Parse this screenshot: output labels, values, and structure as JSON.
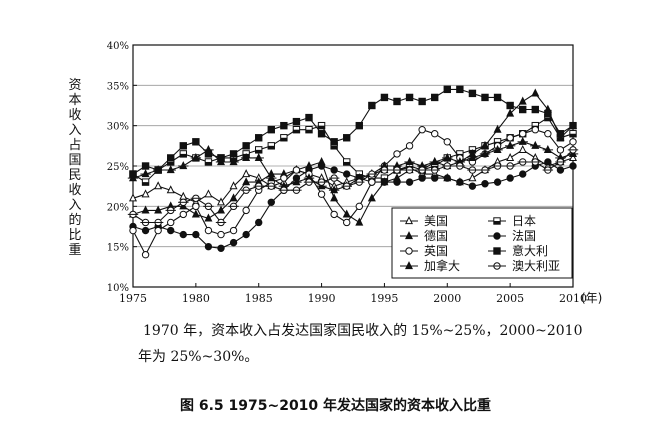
{
  "chart_data": {
    "type": "line",
    "ylabel": "资本收入占国民收入的比重",
    "xlim": [
      1975,
      2010
    ],
    "ylim": [
      10,
      40
    ],
    "x_ticks": [
      "1975",
      "1980",
      "1985",
      "1990",
      "1995",
      "2000",
      "2005",
      "2010"
    ],
    "x_unit": "(年)",
    "y_ticks": [
      "10%",
      "15%",
      "20%",
      "25%",
      "30%",
      "35%",
      "40%"
    ],
    "grid": "horizontal",
    "legend_position": "bottom-right",
    "x": [
      1975,
      1976,
      1977,
      1978,
      1979,
      1980,
      1981,
      1982,
      1983,
      1984,
      1985,
      1986,
      1987,
      1988,
      1989,
      1990,
      1991,
      1992,
      1993,
      1994,
      1995,
      1996,
      1997,
      1998,
      1999,
      2000,
      2001,
      2002,
      2003,
      2004,
      2005,
      2006,
      2007,
      2008,
      2009,
      2010
    ],
    "series": [
      {
        "name": "美国",
        "marker": "triangle-open",
        "color": "#111111",
        "values": [
          21.0,
          21.5,
          22.5,
          22.0,
          21.2,
          20.5,
          21.5,
          20.5,
          22.5,
          24.0,
          23.5,
          22.5,
          23.0,
          24.5,
          24.0,
          23.5,
          22.5,
          23.0,
          23.5,
          24.0,
          24.5,
          24.5,
          24.8,
          24.0,
          24.0,
          23.5,
          23.0,
          23.5,
          24.5,
          25.5,
          26.0,
          27.0,
          26.0,
          25.0,
          25.5,
          26.0
        ]
      },
      {
        "name": "日本",
        "marker": "square-half",
        "color": "#111111",
        "values": [
          24.0,
          23.0,
          24.5,
          25.5,
          26.5,
          26.0,
          25.5,
          26.0,
          26.0,
          26.5,
          27.0,
          27.5,
          28.5,
          29.5,
          29.5,
          30.0,
          27.5,
          25.5,
          24.0,
          23.5,
          23.5,
          24.5,
          25.0,
          24.5,
          25.0,
          26.0,
          26.5,
          27.0,
          27.5,
          28.0,
          28.5,
          29.0,
          30.0,
          31.0,
          28.5,
          29.0
        ]
      },
      {
        "name": "德国",
        "marker": "triangle-filled",
        "color": "#111111",
        "values": [
          19.0,
          19.5,
          19.5,
          20.0,
          20.0,
          19.0,
          18.5,
          19.5,
          21.0,
          23.0,
          23.0,
          24.0,
          24.0,
          24.5,
          25.0,
          25.5,
          21.0,
          19.0,
          18.0,
          21.0,
          23.0,
          23.5,
          24.5,
          24.5,
          25.5,
          25.0,
          25.5,
          26.5,
          27.5,
          29.5,
          31.5,
          33.0,
          34.0,
          32.0,
          28.5,
          30.0
        ]
      },
      {
        "name": "法国",
        "marker": "circle-filled",
        "color": "#111111",
        "values": [
          17.5,
          17.0,
          17.5,
          17.0,
          16.5,
          16.5,
          15.0,
          14.8,
          15.5,
          16.5,
          18.0,
          20.5,
          22.0,
          23.5,
          24.5,
          25.0,
          24.5,
          24.0,
          23.5,
          23.0,
          23.0,
          23.0,
          23.0,
          23.5,
          23.5,
          23.5,
          23.0,
          22.5,
          22.8,
          23.0,
          23.5,
          24.0,
          25.0,
          25.5,
          24.5,
          25.0
        ]
      },
      {
        "name": "英国",
        "marker": "circle-open",
        "color": "#111111",
        "values": [
          17.0,
          14.0,
          17.0,
          18.0,
          19.0,
          20.0,
          17.0,
          16.5,
          17.0,
          19.5,
          22.0,
          23.0,
          23.5,
          24.5,
          24.0,
          21.5,
          19.0,
          18.0,
          20.0,
          23.0,
          25.0,
          26.5,
          27.5,
          29.5,
          29.0,
          28.0,
          26.0,
          25.5,
          26.5,
          27.5,
          28.5,
          29.0,
          29.5,
          29.0,
          27.0,
          28.0
        ]
      },
      {
        "name": "意大利",
        "marker": "square-filled",
        "color": "#111111",
        "values": [
          24.0,
          25.0,
          24.5,
          26.0,
          27.5,
          28.0,
          26.5,
          26.0,
          26.5,
          27.5,
          28.5,
          29.5,
          30.0,
          30.5,
          31.0,
          29.0,
          28.0,
          28.5,
          30.0,
          32.5,
          33.5,
          33.0,
          33.5,
          33.0,
          33.5,
          34.5,
          34.5,
          34.0,
          33.5,
          33.5,
          32.5,
          32.0,
          32.0,
          31.5,
          29.0,
          30.0
        ]
      },
      {
        "name": "加拿大",
        "marker": "triangle-dash",
        "color": "#111111",
        "values": [
          23.5,
          24.0,
          24.5,
          24.5,
          25.0,
          26.0,
          27.0,
          25.5,
          25.5,
          26.0,
          26.0,
          23.5,
          22.5,
          23.0,
          23.5,
          22.5,
          22.0,
          22.5,
          23.5,
          24.0,
          25.0,
          25.0,
          25.5,
          25.0,
          25.5,
          26.0,
          25.5,
          26.0,
          26.5,
          27.0,
          27.5,
          28.0,
          27.5,
          27.0,
          26.0,
          26.5
        ]
      },
      {
        "name": "澳大利亚",
        "marker": "circle-dash",
        "color": "#111111",
        "values": [
          19.0,
          18.0,
          18.0,
          19.5,
          20.5,
          21.0,
          20.0,
          18.0,
          20.0,
          22.0,
          22.5,
          22.5,
          22.0,
          22.0,
          23.0,
          23.0,
          23.5,
          22.5,
          23.0,
          24.0,
          24.5,
          24.5,
          24.5,
          24.5,
          24.5,
          25.0,
          25.0,
          24.5,
          24.5,
          25.0,
          25.0,
          25.5,
          25.5,
          24.5,
          25.5,
          27.0
        ]
      }
    ]
  },
  "body_text": {
    "line1": "1970 年，资本收入占发达国家国民收入的 15%~25%，2000~2010",
    "line2": "年为 25%~30%。"
  },
  "caption": "图 6.5   1975~2010 年发达国家的资本收入比重"
}
